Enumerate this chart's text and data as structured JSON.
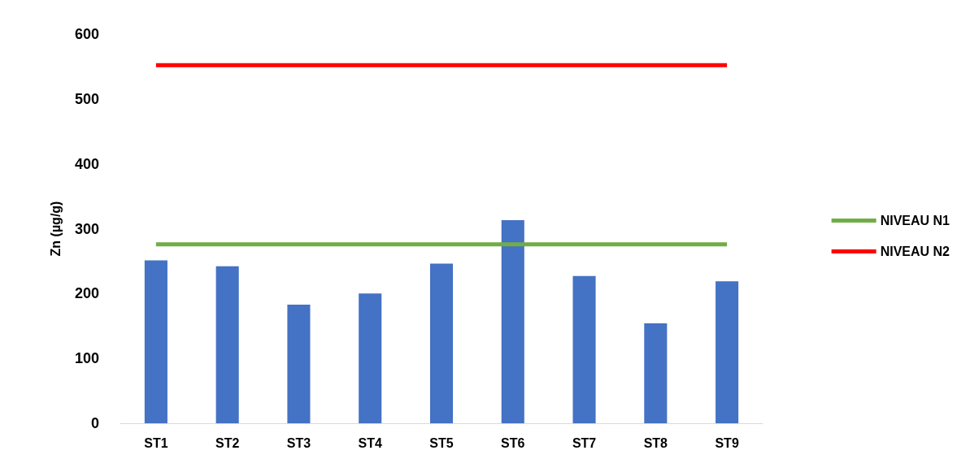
{
  "chart_data": {
    "type": "bar",
    "ylabel": "Zn (µg/g)",
    "categories": [
      "ST1",
      "ST2",
      "ST3",
      "ST4",
      "ST5",
      "ST6",
      "ST7",
      "ST8",
      "ST9"
    ],
    "series": [
      {
        "color": "#4472c4",
        "values": [
          251,
          242,
          183,
          200,
          246,
          313,
          227,
          154,
          219
        ]
      },
      {
        "type": "line",
        "name": "NIVEAU N1",
        "color": "#70ad47",
        "values": [
          276,
          276,
          276,
          276,
          276,
          276,
          276,
          276,
          276
        ]
      },
      {
        "type": "line",
        "name": "NIVEAU N2",
        "color": "#ff0000",
        "values": [
          552,
          552,
          552,
          552,
          552,
          552,
          552,
          552,
          552
        ]
      }
    ],
    "ylim": [
      0,
      600
    ],
    "yticks": [
      0,
      100,
      200,
      300,
      400,
      500,
      600
    ],
    "grid": false,
    "legend": "right",
    "marker": "none"
  }
}
